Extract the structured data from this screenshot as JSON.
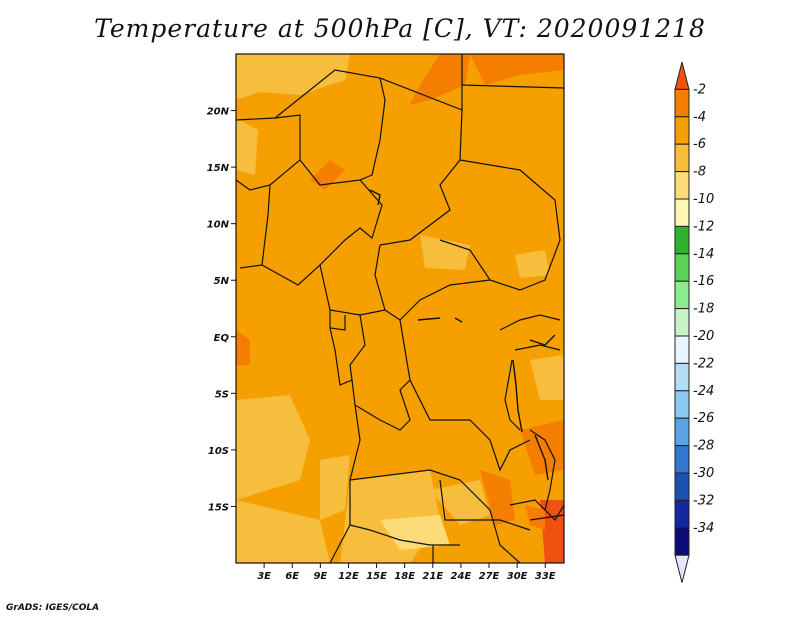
{
  "title": "Temperature at 500hPa [C], VT: 2020091218",
  "credit": "GrADS: IGES/COLA",
  "map": {
    "lon_range": [
      0,
      35
    ],
    "lat_range": [
      -20,
      25
    ],
    "lat_ticks": [
      {
        "value": 20,
        "label": "20N"
      },
      {
        "value": 15,
        "label": "15N"
      },
      {
        "value": 10,
        "label": "10N"
      },
      {
        "value": 5,
        "label": "5N"
      },
      {
        "value": 0,
        "label": "EQ"
      },
      {
        "value": -5,
        "label": "5S"
      },
      {
        "value": -10,
        "label": "10S"
      },
      {
        "value": -15,
        "label": "15S"
      }
    ],
    "lon_ticks": [
      {
        "value": 3,
        "label": "3E"
      },
      {
        "value": 6,
        "label": "6E"
      },
      {
        "value": 9,
        "label": "9E"
      },
      {
        "value": 12,
        "label": "12E"
      },
      {
        "value": 15,
        "label": "15E"
      },
      {
        "value": 18,
        "label": "18E"
      },
      {
        "value": 21,
        "label": "21E"
      },
      {
        "value": 24,
        "label": "24E"
      },
      {
        "value": 27,
        "label": "27E"
      },
      {
        "value": 30,
        "label": "30E"
      },
      {
        "value": 33,
        "label": "33E"
      }
    ],
    "dominant_band_color": "#f5a000"
  },
  "colorbar": {
    "labels": [
      "-2",
      "-4",
      "-6",
      "-8",
      "-10",
      "-12",
      "-14",
      "-16",
      "-18",
      "-20",
      "-22",
      "-24",
      "-26",
      "-28",
      "-30",
      "-32",
      "-34"
    ],
    "colors": [
      "#f05010",
      "#f57d00",
      "#f5a000",
      "#f7bd3c",
      "#fbdc78",
      "#fff5b4",
      "#2db42d",
      "#5ad25a",
      "#8ceb8c",
      "#c8f5c8",
      "#e6f5ff",
      "#b4dcf5",
      "#8cc8f0",
      "#5aa5e6",
      "#3278d2",
      "#1e50b4",
      "#1428a0",
      "#0a0a78",
      "#e6e6fa"
    ]
  }
}
